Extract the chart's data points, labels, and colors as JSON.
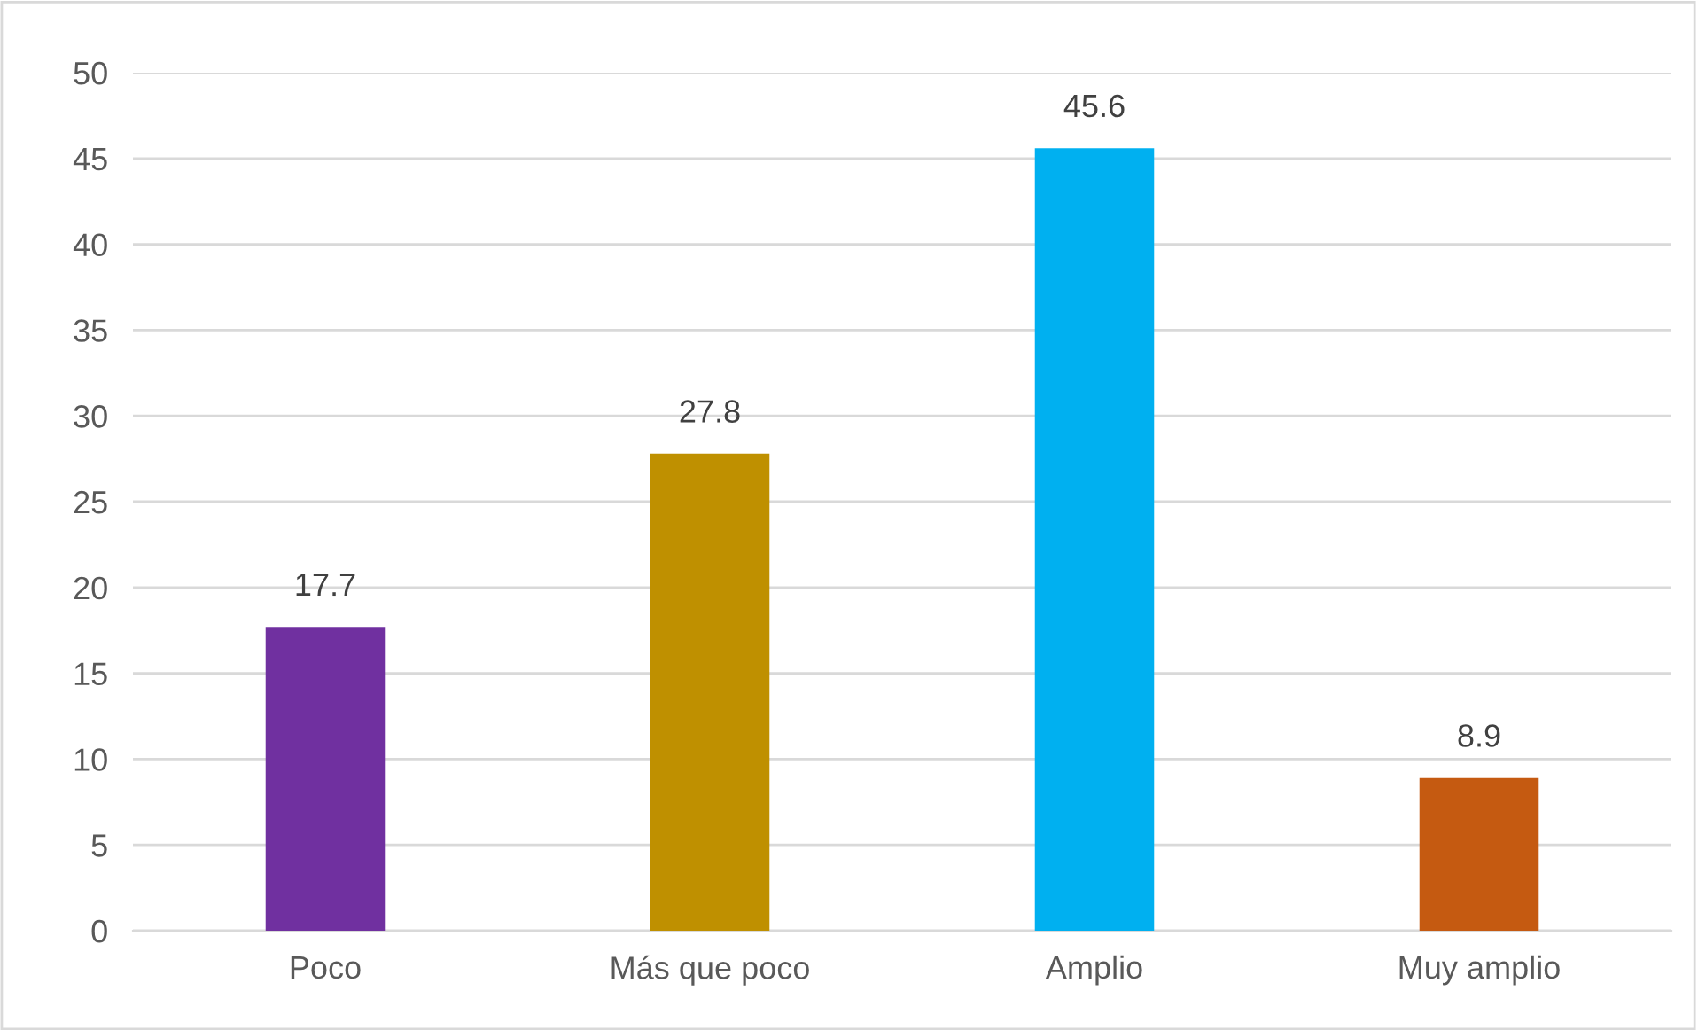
{
  "chart_data": {
    "type": "bar",
    "categories": [
      "Poco",
      "Más que poco",
      "Amplio",
      "Muy amplio"
    ],
    "values": [
      17.7,
      27.8,
      45.6,
      8.9
    ],
    "colors": [
      "#7030a0",
      "#bf9000",
      "#00b0f0",
      "#c55a11"
    ],
    "ylim": [
      0,
      50
    ],
    "yticks": [
      0,
      5,
      10,
      15,
      20,
      25,
      30,
      35,
      40,
      45,
      50
    ],
    "grid": "y",
    "data_labels": true
  }
}
